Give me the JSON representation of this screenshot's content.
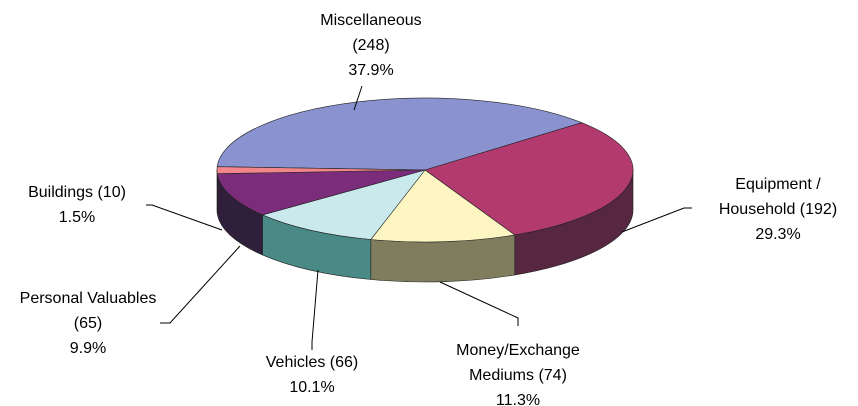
{
  "chart_data": {
    "type": "pie3d",
    "categories": [
      "Miscellaneous",
      "Equipment / Household",
      "Money/Exchange Mediums",
      "Vehicles",
      "Personal Valuables",
      "Buildings"
    ],
    "values": [
      248,
      192,
      74,
      66,
      65,
      10
    ],
    "value_labels": [
      "(248)",
      "(192)",
      "(74)",
      "(66)",
      "(65)",
      "(10)"
    ],
    "percent_labels": [
      "37.9%",
      "29.3%",
      "11.3%",
      "10.1%",
      "9.9%",
      "1.5%"
    ],
    "colors": [
      "#8a93d0",
      "#b23a6e",
      "#fdf6c3",
      "#c9e9ec",
      "#7b2c7b",
      "#f3868a"
    ],
    "side_colors": [
      "#454a68",
      "#572640",
      "#7f7d5e",
      "#4a8a86",
      "#2f1f3a",
      "#80404a"
    ]
  }
}
